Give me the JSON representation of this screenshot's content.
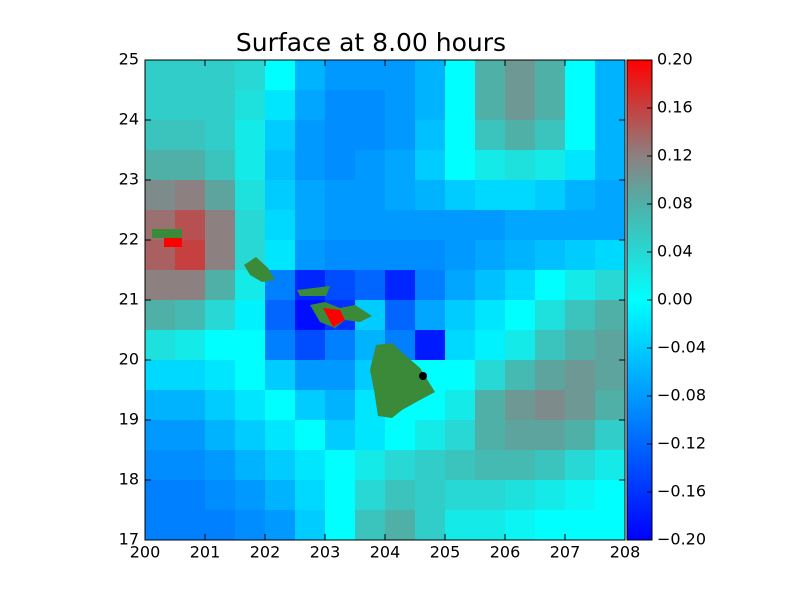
{
  "chart_data": {
    "type": "heatmap",
    "title": "Surface at 8.00 hours",
    "x": [
      200.25,
      200.75,
      201.25,
      201.75,
      202.25,
      202.75,
      203.25,
      203.75,
      204.25,
      204.75,
      205.25,
      205.75,
      206.25,
      206.75,
      207.25,
      207.75
    ],
    "y": [
      24.75,
      24.25,
      23.75,
      23.25,
      22.75,
      22.25,
      21.75,
      21.25,
      20.75,
      20.25,
      19.75,
      19.25,
      18.75,
      18.25,
      17.75,
      17.25
    ],
    "z": [
      [
        0.05,
        0.05,
        0.05,
        0.04,
        0.0,
        -0.06,
        -0.08,
        -0.08,
        -0.08,
        -0.06,
        0.0,
        0.08,
        0.1,
        0.08,
        0.0,
        -0.06
      ],
      [
        0.05,
        0.05,
        0.05,
        0.03,
        -0.02,
        -0.07,
        -0.09,
        -0.09,
        -0.08,
        -0.06,
        0.0,
        0.08,
        0.1,
        0.08,
        0.0,
        -0.06
      ],
      [
        0.06,
        0.06,
        0.05,
        0.02,
        -0.04,
        -0.08,
        -0.09,
        -0.09,
        -0.08,
        -0.05,
        0.0,
        0.06,
        0.08,
        0.06,
        0.0,
        -0.06
      ],
      [
        0.08,
        0.08,
        0.06,
        0.02,
        -0.05,
        -0.08,
        -0.09,
        -0.08,
        -0.07,
        -0.04,
        0.0,
        0.02,
        0.03,
        0.02,
        -0.02,
        -0.06
      ],
      [
        0.11,
        0.12,
        0.09,
        0.03,
        -0.04,
        -0.07,
        -0.08,
        -0.08,
        -0.07,
        -0.06,
        -0.04,
        -0.03,
        -0.03,
        -0.04,
        -0.06,
        -0.07
      ],
      [
        0.13,
        0.15,
        0.12,
        0.04,
        -0.03,
        -0.07,
        -0.08,
        -0.08,
        -0.08,
        -0.08,
        -0.08,
        -0.08,
        -0.07,
        -0.07,
        -0.07,
        -0.07
      ],
      [
        0.14,
        0.16,
        0.12,
        0.04,
        -0.02,
        -0.08,
        -0.09,
        -0.09,
        -0.09,
        -0.09,
        -0.08,
        -0.07,
        -0.06,
        -0.05,
        -0.04,
        -0.03
      ],
      [
        0.12,
        0.12,
        0.08,
        0.02,
        -0.1,
        -0.17,
        -0.14,
        -0.12,
        -0.17,
        -0.1,
        -0.07,
        -0.05,
        -0.03,
        0.0,
        0.02,
        0.04
      ],
      [
        0.08,
        0.07,
        0.04,
        -0.01,
        -0.12,
        -0.19,
        -0.16,
        -0.04,
        -0.12,
        -0.07,
        -0.04,
        -0.02,
        0.0,
        0.03,
        0.06,
        0.08
      ],
      [
        0.03,
        0.02,
        0.0,
        0.0,
        -0.1,
        -0.14,
        -0.1,
        -0.06,
        -0.1,
        -0.18,
        -0.03,
        -0.01,
        0.02,
        0.06,
        0.08,
        0.09
      ],
      [
        -0.03,
        -0.03,
        -0.02,
        0.0,
        -0.04,
        -0.08,
        -0.08,
        -0.04,
        0.0,
        0.0,
        0.0,
        0.04,
        0.07,
        0.09,
        0.1,
        0.09
      ],
      [
        -0.06,
        -0.06,
        -0.04,
        -0.02,
        0.0,
        -0.04,
        -0.06,
        -0.02,
        0.0,
        0.0,
        0.02,
        0.08,
        0.1,
        0.11,
        0.1,
        0.08
      ],
      [
        -0.08,
        -0.08,
        -0.06,
        -0.04,
        -0.02,
        0.0,
        -0.04,
        -0.02,
        0.0,
        0.02,
        0.04,
        0.08,
        0.09,
        0.09,
        0.08,
        0.05
      ],
      [
        -0.09,
        -0.09,
        -0.08,
        -0.06,
        -0.04,
        -0.02,
        0.0,
        0.02,
        0.04,
        0.05,
        0.06,
        0.07,
        0.07,
        0.06,
        0.04,
        0.02
      ],
      [
        -0.1,
        -0.1,
        -0.09,
        -0.08,
        -0.06,
        -0.03,
        0.0,
        0.04,
        0.06,
        0.05,
        0.04,
        0.04,
        0.03,
        0.02,
        0.01,
        0.0
      ],
      [
        -0.1,
        -0.1,
        -0.1,
        -0.09,
        -0.08,
        -0.04,
        0.0,
        0.06,
        0.08,
        0.05,
        0.02,
        0.02,
        0.01,
        0.0,
        0.0,
        0.0
      ]
    ],
    "xlim": [
      200,
      208
    ],
    "xticks": [
      200,
      201,
      202,
      203,
      204,
      205,
      206,
      207,
      208
    ],
    "ylim": [
      17,
      25
    ],
    "yticks": [
      17,
      18,
      19,
      20,
      21,
      22,
      23,
      24,
      25
    ],
    "zlim": [
      -0.2,
      0.2
    ],
    "colorscale": [
      [
        -0.2,
        "#0000ff"
      ],
      [
        -0.1,
        "#0080ff"
      ],
      [
        0,
        "#00ffff"
      ],
      [
        0.08,
        "#4fb0a8"
      ],
      [
        0.12,
        "#8c8080"
      ],
      [
        0.2,
        "#ff0000"
      ]
    ],
    "zticks": [
      {
        "value": 0.2,
        "label": "0.20"
      },
      {
        "value": 0.16,
        "label": "0.16"
      },
      {
        "value": 0.12,
        "label": "0.12"
      },
      {
        "value": 0.08,
        "label": "0.08"
      },
      {
        "value": 0.04,
        "label": "0.04"
      },
      {
        "value": 0,
        "label": "0.00"
      },
      {
        "value": -0.04,
        "label": "−0.04"
      },
      {
        "value": -0.08,
        "label": "−0.08"
      },
      {
        "value": -0.12,
        "label": "−0.12"
      },
      {
        "value": -0.16,
        "label": "−0.16"
      },
      {
        "value": -0.2,
        "label": "−0.20"
      }
    ]
  }
}
